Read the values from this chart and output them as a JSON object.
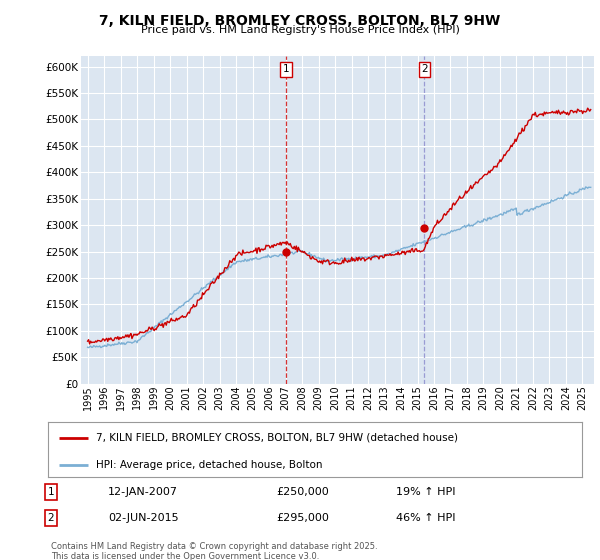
{
  "title": "7, KILN FIELD, BROMLEY CROSS, BOLTON, BL7 9HW",
  "subtitle": "Price paid vs. HM Land Registry's House Price Index (HPI)",
  "background_color": "#ffffff",
  "plot_bg_color": "#dce6f1",
  "red_line_label": "7, KILN FIELD, BROMLEY CROSS, BOLTON, BL7 9HW (detached house)",
  "blue_line_label": "HPI: Average price, detached house, Bolton",
  "annotation1_date": "12-JAN-2007",
  "annotation1_price": "£250,000",
  "annotation1_hpi": "19% ↑ HPI",
  "annotation2_date": "02-JUN-2015",
  "annotation2_price": "£295,000",
  "annotation2_hpi": "46% ↑ HPI",
  "footer": "Contains HM Land Registry data © Crown copyright and database right 2025.\nThis data is licensed under the Open Government Licence v3.0.",
  "ylim": [
    0,
    620000
  ],
  "yticks": [
    0,
    50000,
    100000,
    150000,
    200000,
    250000,
    300000,
    350000,
    400000,
    450000,
    500000,
    550000,
    600000
  ],
  "xlim_left": 1994.6,
  "xlim_right": 2025.7,
  "vline1_x": 2007.04,
  "vline2_x": 2015.42,
  "dot1_x": 2007.04,
  "dot1_y": 250000,
  "dot2_x": 2015.42,
  "dot2_y": 295000,
  "red_color": "#cc0000",
  "blue_color": "#7bafd4",
  "vline1_color": "#cc0000",
  "vline2_color": "#8888cc",
  "grid_color": "#ffffff",
  "title_fontsize": 10,
  "subtitle_fontsize": 8,
  "tick_fontsize": 7,
  "ylabel_fontsize": 7.5
}
